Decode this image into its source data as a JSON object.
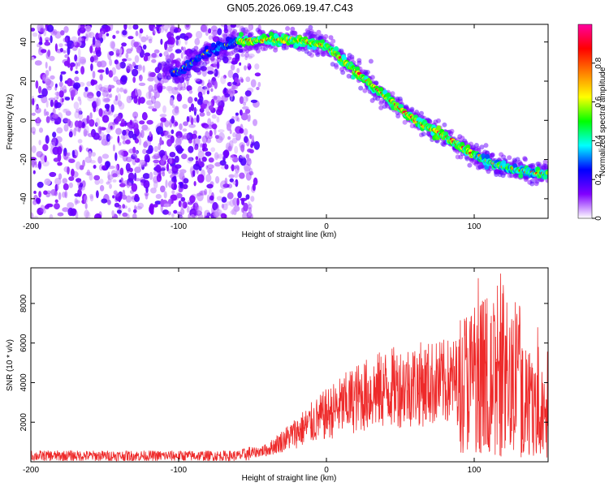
{
  "chart_data": [
    {
      "type": "heatmap",
      "title": "GN05.2026.069.19.47.C43",
      "xlabel": "Height of straight line (km)",
      "ylabel": "Frequency (Hz)",
      "xlim": [
        -200,
        150
      ],
      "ylim": [
        -50,
        49
      ],
      "x_ticks": [
        -200,
        -100,
        0,
        100
      ],
      "y_ticks": [
        -40,
        -20,
        0,
        20,
        40
      ],
      "colorbar": {
        "label": "Normalized spectral amplitude",
        "range": [
          0,
          1
        ],
        "ticks": [
          0,
          0.2,
          0.4,
          0.6,
          0.8
        ],
        "colors": [
          "#ffffff",
          "#8000ff",
          "#0000ff",
          "#00ffff",
          "#00ff00",
          "#ffff00",
          "#ff8000",
          "#ff0000",
          "#ff00a0"
        ]
      },
      "ridge": {
        "description_points_x": [
          -100,
          -80,
          -60,
          -40,
          -20,
          0,
          20,
          40,
          60,
          80,
          100,
          120,
          140,
          150
        ],
        "description_points_y": [
          25,
          35,
          40,
          41,
          41,
          38,
          25,
          12,
          0,
          -8,
          -18,
          -24,
          -27,
          -27
        ]
      }
    },
    {
      "type": "line",
      "xlabel": "Height of straight line (km)",
      "ylabel": "SNR (10 * v/v)",
      "xlim": [
        -200,
        150
      ],
      "ylim": [
        0,
        9800
      ],
      "x_ticks": [
        -200,
        -100,
        0,
        100
      ],
      "y_ticks": [
        2000,
        4000,
        6000,
        8000
      ],
      "series": [
        {
          "name": "SNR",
          "color": "#ee2a2a",
          "envelope_x": [
            -200,
            -150,
            -100,
            -60,
            -40,
            -20,
            0,
            20,
            40,
            60,
            80,
            100,
            110,
            120,
            130,
            140,
            150
          ],
          "envelope_y": [
            300,
            300,
            300,
            300,
            600,
            1500,
            2400,
            3200,
            3700,
            3900,
            4000,
            4200,
            4400,
            4500,
            4500,
            2500,
            2000
          ]
        }
      ]
    }
  ]
}
